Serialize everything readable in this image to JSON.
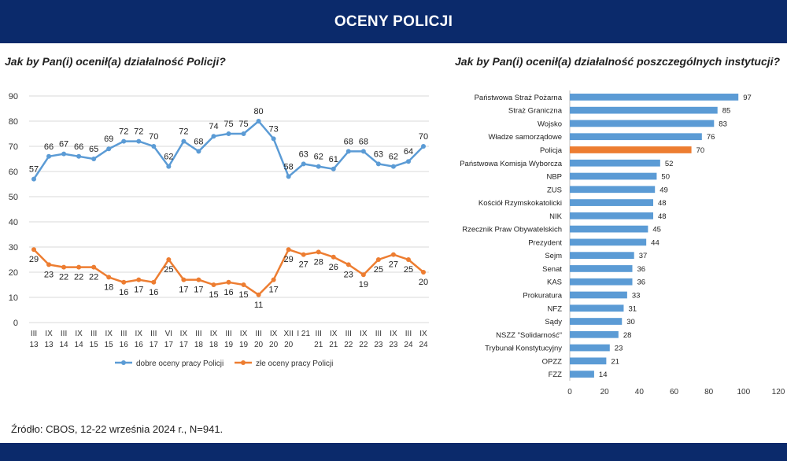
{
  "header": {
    "title": "OCENY POLICJI"
  },
  "source": "Źródło: CBOS, 12-22 września 2024 r., N=941.",
  "colors": {
    "header_bg": "#0b2a6b",
    "blue": "#5b9bd5",
    "orange": "#ed7d31",
    "grid": "#d9d9d9",
    "text": "#222222"
  },
  "chart_data": [
    {
      "type": "line",
      "title": "Jak by Pan(i) ocenił(a) działalność Policji?",
      "categories": [
        [
          "III",
          "13"
        ],
        [
          "IX",
          "13"
        ],
        [
          "III",
          "14"
        ],
        [
          "IX",
          "14"
        ],
        [
          "III",
          "15"
        ],
        [
          "IX",
          "15"
        ],
        [
          "III",
          "16"
        ],
        [
          "IX",
          "16"
        ],
        [
          "III",
          "17"
        ],
        [
          "VI",
          "17"
        ],
        [
          "IX",
          "17"
        ],
        [
          "III",
          "18"
        ],
        [
          "IX",
          "18"
        ],
        [
          "III",
          "19"
        ],
        [
          "IX",
          "19"
        ],
        [
          "III",
          "20"
        ],
        [
          "IX",
          "20"
        ],
        [
          "XII",
          "20"
        ],
        [
          "I 21",
          ""
        ],
        [
          "III",
          "21"
        ],
        [
          "IX",
          "21"
        ],
        [
          "III",
          "22"
        ],
        [
          "IX",
          "22"
        ],
        [
          "III",
          "23"
        ],
        [
          "IX",
          "23"
        ],
        [
          "III",
          "24"
        ],
        [
          "IX",
          "24"
        ]
      ],
      "series": [
        {
          "name": "dobre oceny pracy Policji",
          "color": "#5b9bd5",
          "values": [
            57,
            66,
            67,
            66,
            65,
            69,
            72,
            72,
            70,
            62,
            72,
            68,
            74,
            75,
            75,
            80,
            73,
            58,
            63,
            62,
            61,
            68,
            68,
            63,
            62,
            64,
            70
          ]
        },
        {
          "name": "złe oceny pracy Policji",
          "color": "#ed7d31",
          "values": [
            29,
            23,
            22,
            22,
            22,
            18,
            16,
            17,
            16,
            25,
            17,
            17,
            15,
            16,
            15,
            11,
            17,
            29,
            27,
            28,
            26,
            23,
            19,
            25,
            27,
            25,
            20
          ]
        }
      ],
      "ylim": [
        0,
        90
      ],
      "yticks": [
        0,
        10,
        20,
        30,
        40,
        50,
        60,
        70,
        80,
        90
      ],
      "legend": "bottom"
    },
    {
      "type": "bar",
      "orientation": "horizontal",
      "title": "Jak by Pan(i) ocenił(a) działalność poszczególnych instytucji?",
      "categories": [
        "Państwowa Straż Pożarna",
        "Straż Graniczna",
        "Wojsko",
        "Władze samorządowe",
        "Policja",
        "Państwowa Komisja Wyborcza",
        "NBP",
        "ZUS",
        "Kościół Rzymskokatolicki",
        "NIK",
        "Rzecznik Praw Obywatelskich",
        "Prezydent",
        "Sejm",
        "Senat",
        "KAS",
        "Prokuratura",
        "NFZ",
        "Sądy",
        "NSZZ \"Solidarność\"",
        "Trybunał Konstytucyjny",
        "OPZZ",
        "FZZ"
      ],
      "values": [
        97,
        85,
        83,
        76,
        70,
        52,
        50,
        49,
        48,
        48,
        45,
        44,
        37,
        36,
        36,
        33,
        31,
        30,
        28,
        23,
        21,
        14
      ],
      "highlight": "Policja",
      "xlim": [
        0,
        120
      ],
      "xticks": [
        0,
        20,
        40,
        60,
        80,
        100,
        120
      ]
    }
  ]
}
